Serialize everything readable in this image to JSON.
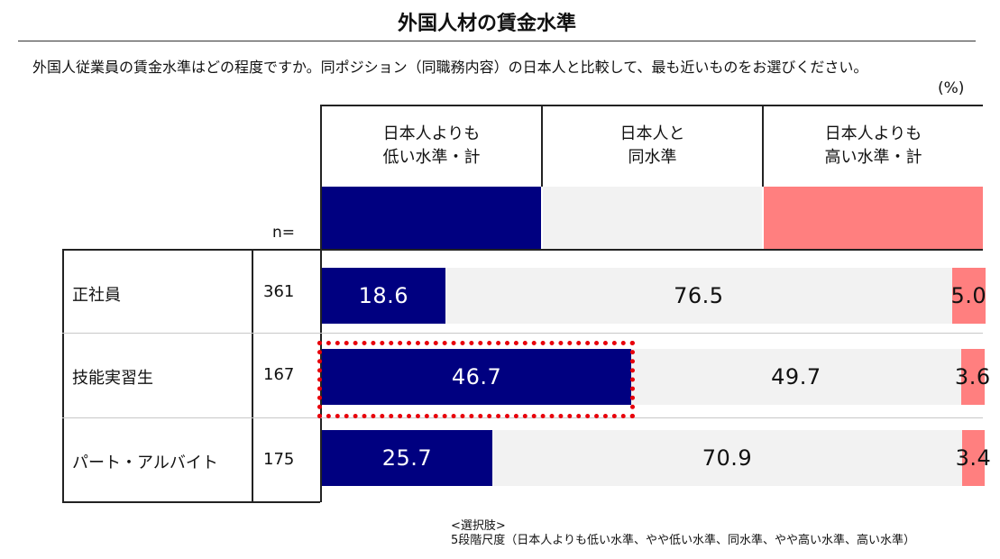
{
  "title": "外国人材の賃金水準",
  "subtitle": "外国人従業員の賃金水準はどの程度ですか。同ポジション（同職務内容）の日本人と比較して、最も近いものをお選びください。",
  "unit": "(%)",
  "n_label": "n=",
  "colors": {
    "lower": "#000080",
    "same": "#f2f2f2",
    "higher": "#ff7f7f",
    "highlight": "#e8000b"
  },
  "chart_data": {
    "type": "bar",
    "orientation": "horizontal",
    "stacked": true,
    "xlim": [
      0,
      100
    ],
    "categories": [
      "正社員",
      "技能実習生",
      "パート・アルバイト"
    ],
    "n": [
      "361",
      "167",
      "175"
    ],
    "series": [
      {
        "name": "日本人よりも\n低い水準・計",
        "values": [
          18.6,
          46.7,
          25.7
        ],
        "labels": [
          "18.6",
          "46.7",
          "25.7"
        ]
      },
      {
        "name": "日本人と\n同水準",
        "values": [
          76.5,
          49.7,
          70.9
        ],
        "labels": [
          "76.5",
          "49.7",
          "70.9"
        ]
      },
      {
        "name": "日本人よりも\n高い水準・計",
        "values": [
          5.0,
          3.6,
          3.4
        ],
        "labels": [
          "5.0",
          "3.6",
          "3.4"
        ]
      }
    ],
    "highlight": {
      "category": "技能実習生",
      "series": "日本人よりも\n低い水準・計"
    }
  },
  "footnote": "<選択肢>\n5段階尺度（日本人よりも低い水準、やや低い水準、同水準、やや高い水準、高い水準）"
}
